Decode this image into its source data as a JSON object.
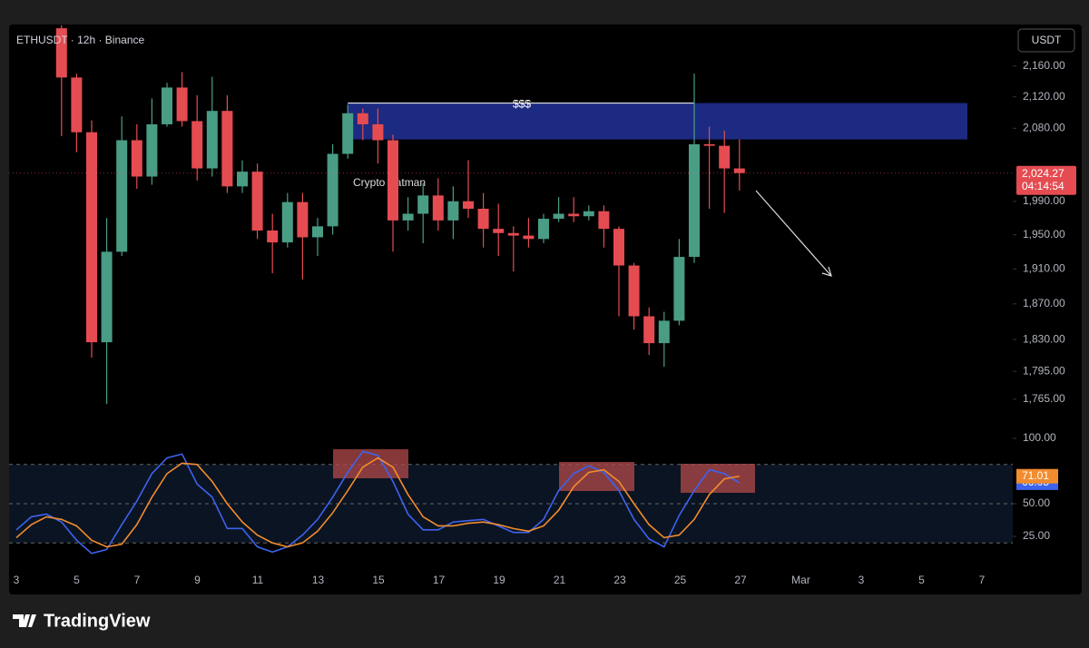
{
  "chart_data": {
    "type": "candlestick",
    "title": "ETHUSDT · 12h · Binance",
    "currency": "USDT",
    "brand": "TradingView",
    "watermark": "Crypto Batman",
    "log_scale": true,
    "up_color": "#4a9d85",
    "down_color": "#e44c52",
    "open": [
      null,
      null,
      null,
      2210,
      2145,
      2075,
      1827,
      1930,
      2065,
      2020,
      2085,
      2132,
      2089,
      2030,
      2102,
      2008,
      2026,
      1955,
      1941,
      1989,
      1947,
      1960,
      2048,
      2099,
      2085,
      2065,
      1967,
      1975,
      1997,
      1967,
      1990,
      1981,
      1957,
      1952,
      1949,
      1945,
      1969,
      1975,
      1972,
      1978,
      1957,
      1914,
      1856,
      1826,
      1851,
      1924,
      2060,
      2058,
      2030
    ],
    "high": [
      null,
      null,
      null,
      2214,
      2150,
      2090,
      1970,
      2095,
      2085,
      2118,
      2138,
      2152,
      2122,
      2146,
      2122,
      2040,
      2036,
      1975,
      2000,
      2000,
      1970,
      2060,
      2110,
      2105,
      2105,
      2072,
      1995,
      2012,
      2018,
      2008,
      2040,
      2000,
      1987,
      1960,
      1970,
      1975,
      1995,
      1995,
      1985,
      1985,
      1960,
      1917,
      1866,
      1861,
      1945,
      2150,
      2082,
      2077,
      2066
    ],
    "low": [
      null,
      null,
      null,
      2070,
      2050,
      1810,
      1760,
      1925,
      2005,
      2010,
      2082,
      2082,
      2015,
      2020,
      2000,
      2000,
      1945,
      1905,
      1935,
      1898,
      1925,
      1950,
      2042,
      2065,
      2036,
      1930,
      1955,
      1940,
      1955,
      1945,
      1970,
      1935,
      1925,
      1907,
      1935,
      1940,
      1965,
      1965,
      1967,
      1935,
      1856,
      1841,
      1813,
      1800,
      1846,
      1917,
      1981,
      1976,
      2003
    ],
    "close": [
      null,
      null,
      null,
      2145,
      2075,
      1827,
      1930,
      2065,
      2020,
      2085,
      2132,
      2089,
      2030,
      2102,
      2008,
      2026,
      1955,
      1941,
      1989,
      1947,
      1960,
      2048,
      2099,
      2085,
      2065,
      1967,
      1975,
      1997,
      1967,
      1990,
      1981,
      1957,
      1952,
      1949,
      1945,
      1969,
      1975,
      1972,
      1978,
      1957,
      1914,
      1856,
      1826,
      1851,
      1924,
      2060,
      2058,
      2030,
      2024.27
    ],
    "last_price_label": "2,024.27",
    "countdown": "04:14:54",
    "ylim": [
      1736,
      2215
    ],
    "yticks": [
      {
        "value": 2160,
        "label": "2,160.00"
      },
      {
        "value": 2120,
        "label": "2,120.00"
      },
      {
        "value": 2080,
        "label": "2,080.00"
      },
      {
        "value": 1990,
        "label": "1,990.00"
      },
      {
        "value": 1950,
        "label": "1,950.00"
      },
      {
        "value": 1910,
        "label": "1,910.00"
      },
      {
        "value": 1870,
        "label": "1,870.00"
      },
      {
        "value": 1830,
        "label": "1,830.00"
      },
      {
        "value": 1795,
        "label": "1,795.00"
      },
      {
        "value": 1765,
        "label": "1,765.00"
      }
    ],
    "zone": {
      "label": "$$$",
      "low": 2066,
      "high": 2112,
      "color": "#1f2f90",
      "start": 22
    },
    "xtick_labels": [
      "3",
      "5",
      "7",
      "9",
      "11",
      "13",
      "15",
      "17",
      "19",
      "21",
      "23",
      "25",
      "27",
      "Mar",
      "3",
      "5",
      "7"
    ],
    "indicator": {
      "ylim": [
        0,
        100
      ],
      "yticks": [
        {
          "value": 100,
          "label": "100.00"
        },
        {
          "value": 50,
          "label": "50.00"
        },
        {
          "value": 25,
          "label": "25.00"
        }
      ],
      "levels": [
        80,
        50,
        20
      ],
      "series": [
        {
          "color": "#3d63ee",
          "values": [
            30,
            40,
            42,
            36,
            22,
            12,
            15,
            34,
            52,
            73,
            85,
            88,
            65,
            55,
            31,
            31,
            17,
            13,
            17,
            26,
            38,
            55,
            74,
            90,
            87,
            67,
            42,
            30,
            30,
            36,
            37,
            38,
            33,
            28,
            28,
            38,
            60,
            73,
            79,
            74,
            60,
            38,
            23,
            17,
            41,
            60,
            76,
            73,
            66.05
          ]
        },
        {
          "color": "#f28c2e",
          "values": [
            24,
            34,
            40,
            38,
            33,
            22,
            17,
            19,
            34,
            55,
            73,
            81,
            80,
            67,
            50,
            36,
            26,
            20,
            17,
            20,
            29,
            43,
            60,
            78,
            85,
            78,
            57,
            40,
            33,
            33,
            35,
            36,
            34,
            31,
            29,
            33,
            45,
            63,
            74,
            76,
            67,
            50,
            34,
            24,
            26,
            38,
            57,
            69,
            71.01
          ]
        }
      ]
    }
  }
}
